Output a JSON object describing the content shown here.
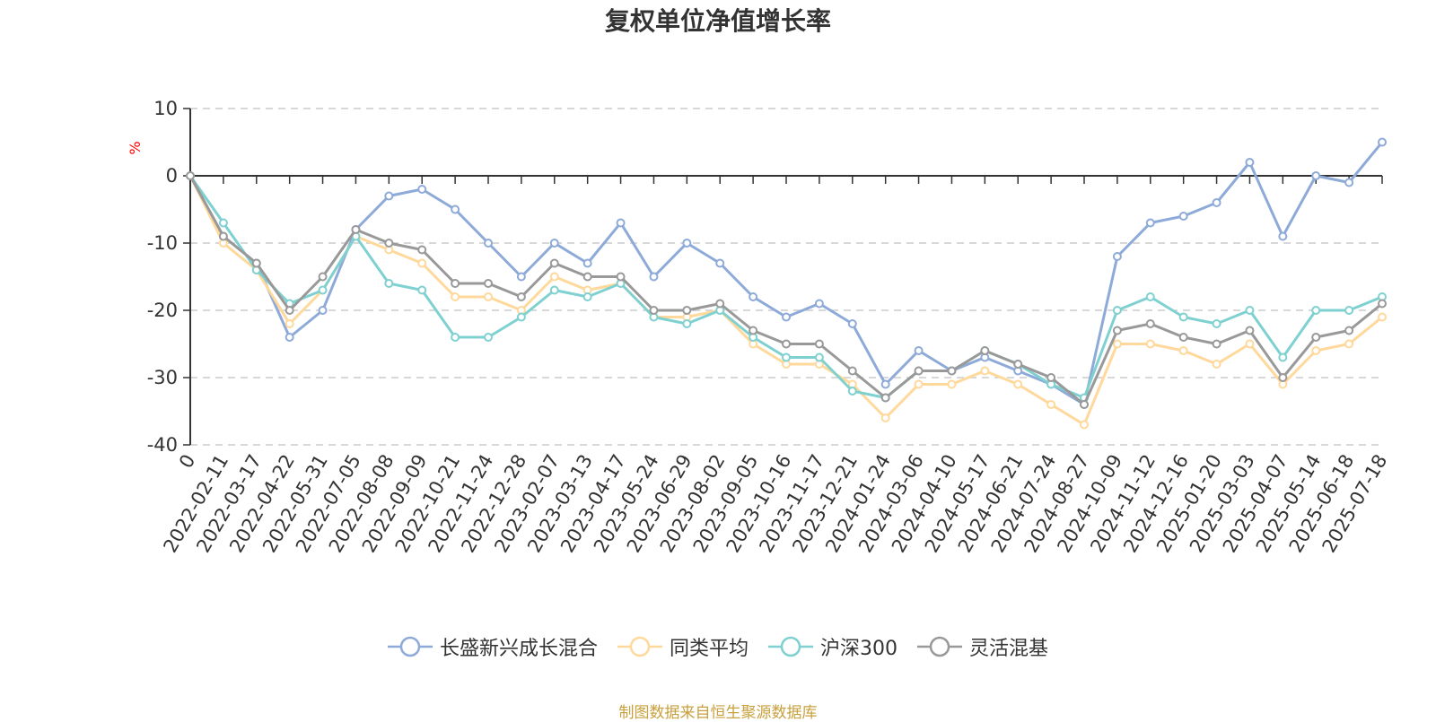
{
  "chart_data": {
    "type": "line",
    "title": "复权单位净值增长率",
    "ylabel": "%",
    "ylim": [
      -40,
      10
    ],
    "yticks": [
      10,
      0,
      -10,
      -20,
      -30,
      -40
    ],
    "grid": true,
    "legend_position": "bottom",
    "x": [
      "0",
      "2022-02-11",
      "2022-03-17",
      "2022-04-22",
      "2022-05-31",
      "2022-07-05",
      "2022-08-08",
      "2022-09-09",
      "2022-10-21",
      "2022-11-24",
      "2022-12-28",
      "2023-02-07",
      "2023-03-13",
      "2023-04-17",
      "2023-05-24",
      "2023-06-29",
      "2023-08-02",
      "2023-09-05",
      "2023-10-16",
      "2023-11-17",
      "2023-12-21",
      "2024-01-24",
      "2024-03-06",
      "2024-04-10",
      "2024-05-17",
      "2024-06-21",
      "2024-07-24",
      "2024-08-27",
      "2024-10-09",
      "2024-11-12",
      "2024-12-16",
      "2025-01-20",
      "2025-03-03",
      "2025-04-07",
      "2025-05-14",
      "2025-06-18",
      "2025-07-18"
    ],
    "series": [
      {
        "name": "长盛新兴成长混合",
        "color": "#8eaad8",
        "values": [
          0,
          -9,
          -13,
          -24,
          -20,
          -8,
          -3,
          -2,
          -5,
          -10,
          -15,
          -10,
          -13,
          -7,
          -15,
          -10,
          -13,
          -18,
          -21,
          -19,
          -22,
          -31,
          -26,
          -29,
          -27,
          -29,
          -31,
          -34,
          -12,
          -7,
          -6,
          -4,
          2,
          -9,
          0,
          -1,
          5
        ]
      },
      {
        "name": "同类平均",
        "color": "#ffd89b",
        "values": [
          0,
          -10,
          -14,
          -22,
          -17,
          -9,
          -11,
          -13,
          -18,
          -18,
          -20,
          -15,
          -17,
          -16,
          -21,
          -21,
          -20,
          -25,
          -28,
          -28,
          -31,
          -36,
          -31,
          -31,
          -29,
          -31,
          -34,
          -37,
          -25,
          -25,
          -26,
          -28,
          -25,
          -31,
          -26,
          -25,
          -21
        ]
      },
      {
        "name": "沪深300",
        "color": "#7fd1d1",
        "values": [
          0,
          -7,
          -14,
          -19,
          -17,
          -9,
          -16,
          -17,
          -24,
          -24,
          -21,
          -17,
          -18,
          -16,
          -21,
          -22,
          -20,
          -24,
          -27,
          -27,
          -32,
          -33,
          -29,
          -29,
          -26,
          -28,
          -31,
          -33,
          -20,
          -18,
          -21,
          -22,
          -20,
          -27,
          -20,
          -20,
          -18
        ]
      },
      {
        "name": "灵活混基",
        "color": "#999999",
        "values": [
          0,
          -9,
          -13,
          -20,
          -15,
          -8,
          -10,
          -11,
          -16,
          -16,
          -18,
          -13,
          -15,
          -15,
          -20,
          -20,
          -19,
          -23,
          -25,
          -25,
          -29,
          -33,
          -29,
          -29,
          -26,
          -28,
          -30,
          -34,
          -23,
          -22,
          -24,
          -25,
          -23,
          -30,
          -24,
          -23,
          -19
        ]
      }
    ]
  },
  "source_note": {
    "text": "制图数据来自恒生聚源数据库",
    "color": "#c8a03c"
  }
}
